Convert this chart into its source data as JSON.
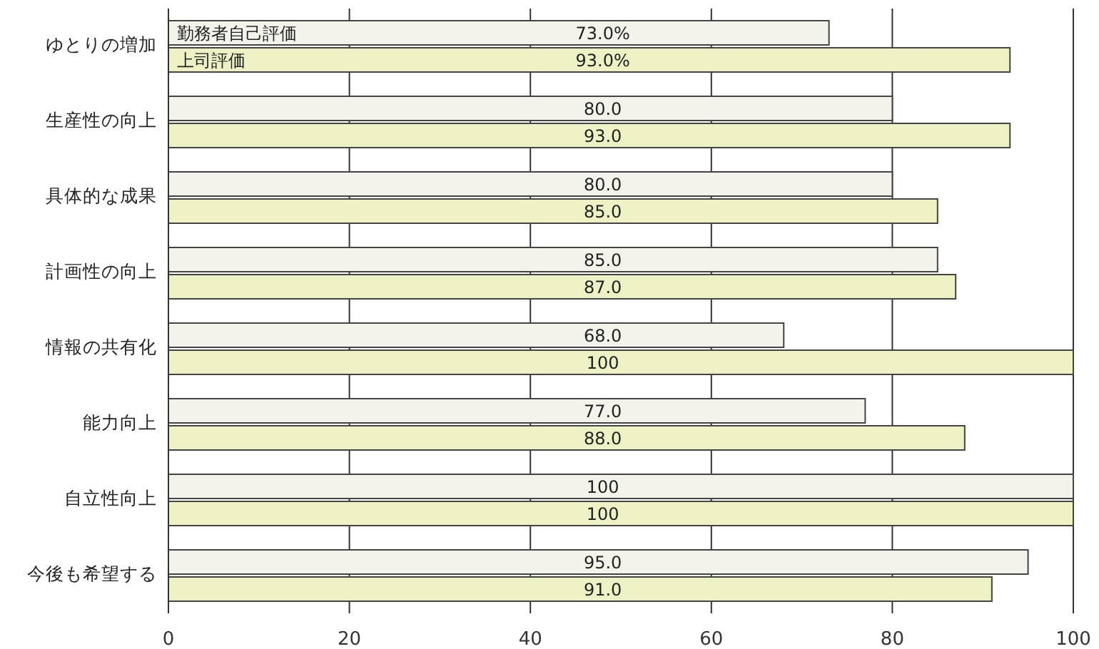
{
  "chart_data": {
    "type": "bar",
    "orientation": "horizontal",
    "categories": [
      "ゆとりの増加",
      "生産性の向上",
      "具体的な成果",
      "計画性の向上",
      "情報の共有化",
      "能力向上",
      "自立性向上",
      "今後も希望する"
    ],
    "series": [
      {
        "name": "勤務者自己評価",
        "color": "#f3f3ec",
        "values": [
          73,
          80,
          80,
          85,
          68,
          77,
          100,
          95
        ],
        "value_labels": [
          "73.0%",
          "80.0",
          "80.0",
          "85.0",
          "68.0",
          "77.0",
          "100",
          "95.0"
        ]
      },
      {
        "name": "上司評価",
        "color": "#eef1c4",
        "values": [
          93,
          93,
          85,
          87,
          100,
          88,
          100,
          91
        ],
        "value_labels": [
          "93.0%",
          "93.0",
          "85.0",
          "87.0",
          "100",
          "88.0",
          "100",
          "91.0"
        ]
      }
    ],
    "xlim": [
      0,
      100
    ],
    "xticks": [
      0,
      20,
      40,
      60,
      80,
      100
    ],
    "grid": "x",
    "legend": "top left"
  }
}
